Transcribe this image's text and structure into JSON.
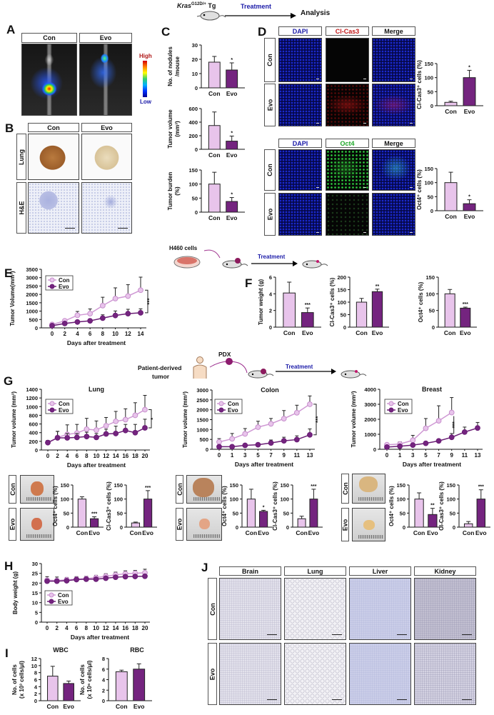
{
  "figure": {
    "panel_letters": [
      "A",
      "B",
      "C",
      "D",
      "E",
      "F",
      "G",
      "H",
      "I",
      "J"
    ],
    "colors": {
      "con_fill": "#e8c4eb",
      "con_line": "#cf98d4",
      "evo_fill": "#74247f",
      "evo_line": "#6a1d75",
      "axis": "#111111",
      "treatment_text": "#1a1aa8",
      "cl_cas3_text": "#c21818",
      "oct4_text": "#1fa82a"
    },
    "schematic_top": {
      "mouse_label": "Kras",
      "mouse_label_sup": "G12D/+",
      "mouse_label_suffix": " Tg",
      "arrow_label": "Treatment",
      "end_label": "Analysis"
    },
    "panel_A": {
      "headers": [
        "Con",
        "Evo"
      ],
      "colorbar_high": "High",
      "colorbar_low": "Low"
    },
    "panel_B": {
      "headers": [
        "Con",
        "Evo"
      ],
      "rows": [
        "Lung",
        "H&E"
      ]
    },
    "panel_D": {
      "block1": {
        "headers": [
          "DAPI",
          "Cl-Cas3",
          "Merge"
        ],
        "rows": [
          "Con",
          "Evo"
        ]
      },
      "block2": {
        "headers": [
          "DAPI",
          "Oct4",
          "Merge"
        ],
        "rows": [
          "Con",
          "Evo"
        ]
      }
    },
    "schematic_h460": {
      "cells_label": "H460 cells",
      "arrow_label": "Treatment"
    },
    "schematic_pdx": {
      "source_label_1": "Patient-derived",
      "source_label_2": "tumor",
      "pdx_label": "PDX",
      "arrow_label": "Treatment"
    },
    "panel_G_photos": {
      "rows": [
        "Con",
        "Evo"
      ]
    },
    "panel_J": {
      "headers": [
        "Brain",
        "Lung",
        "Liver",
        "Kidney"
      ],
      "rows": [
        "Con",
        "Evo"
      ]
    }
  },
  "chart_data": [
    {
      "panel": "C",
      "type": "bar",
      "ylabel": [
        "No. of nodules",
        "/mouse"
      ],
      "ylim": [
        0,
        30
      ],
      "yticks": [
        0,
        10,
        20,
        30
      ],
      "categories": [
        "Con",
        "Evo"
      ],
      "values": [
        18,
        12.5
      ],
      "errors": [
        4,
        5
      ],
      "significance": [
        "",
        "*"
      ]
    },
    {
      "panel": "C",
      "type": "bar",
      "ylabel": [
        "Tumor volume",
        "(mm³)"
      ],
      "ylim": [
        0,
        600
      ],
      "yticks": [
        0,
        200,
        400,
        600
      ],
      "categories": [
        "Con",
        "Evo"
      ],
      "values": [
        350,
        120
      ],
      "errors": [
        200,
        75
      ],
      "significance": [
        "",
        "*"
      ]
    },
    {
      "panel": "C",
      "type": "bar",
      "ylabel": [
        "Tumor burden",
        "(%)"
      ],
      "ylim": [
        0,
        150
      ],
      "yticks": [
        0,
        50,
        100,
        150
      ],
      "categories": [
        "Con",
        "Evo"
      ],
      "values": [
        100,
        38
      ],
      "errors": [
        42,
        14
      ],
      "significance": [
        "",
        "*"
      ]
    },
    {
      "panel": "D",
      "type": "bar",
      "ylabel": [
        "Cl-Cas3⁺ cells (%)"
      ],
      "ylim": [
        0,
        150
      ],
      "yticks": [
        0,
        50,
        100,
        150
      ],
      "categories": [
        "Con",
        "Evo"
      ],
      "values": [
        12,
        100
      ],
      "errors": [
        4,
        26
      ],
      "significance": [
        "",
        "*"
      ]
    },
    {
      "panel": "D",
      "type": "bar",
      "ylabel": [
        "Oct4⁺ cells (%)"
      ],
      "ylim": [
        0,
        150
      ],
      "yticks": [
        0,
        50,
        100,
        150
      ],
      "categories": [
        "Con",
        "Evo"
      ],
      "values": [
        100,
        25
      ],
      "errors": [
        37,
        14
      ],
      "significance": [
        "",
        "*"
      ]
    },
    {
      "panel": "E",
      "type": "line",
      "title": "",
      "ylabel": [
        "Tumor Volume(mm³)"
      ],
      "xlabel": "Days after treatment",
      "x": [
        0,
        2,
        4,
        6,
        8,
        10,
        12,
        14
      ],
      "ylim": [
        0,
        3500
      ],
      "yticks": [
        0,
        500,
        1000,
        1500,
        2000,
        2500,
        3000,
        3500
      ],
      "legend": "top-left",
      "significance": "***",
      "series": [
        {
          "name": "Con",
          "values": [
            200,
            420,
            750,
            850,
            1330,
            1750,
            1900,
            2250
          ],
          "errors": [
            60,
            80,
            230,
            280,
            500,
            640,
            680,
            780
          ]
        },
        {
          "name": "Evo",
          "values": [
            130,
            260,
            350,
            420,
            580,
            740,
            850,
            900
          ],
          "errors": [
            40,
            60,
            80,
            90,
            200,
            270,
            260,
            240
          ]
        }
      ]
    },
    {
      "panel": "F",
      "type": "bar",
      "ylabel": [
        "Tumor weight (g)"
      ],
      "ylim": [
        0,
        6
      ],
      "yticks": [
        0,
        2,
        4,
        6
      ],
      "categories": [
        "Con",
        "Evo"
      ],
      "values": [
        4.1,
        1.75
      ],
      "errors": [
        1.3,
        0.55
      ],
      "significance": [
        "",
        "***"
      ]
    },
    {
      "panel": "F",
      "type": "bar",
      "ylabel": [
        "Cl-Cas3⁺ cells (%)"
      ],
      "ylim": [
        0,
        200
      ],
      "yticks": [
        0,
        50,
        100,
        150,
        200
      ],
      "categories": [
        "Con",
        "Evo"
      ],
      "values": [
        100,
        142
      ],
      "errors": [
        15,
        10
      ],
      "significance": [
        "",
        "**"
      ]
    },
    {
      "panel": "F",
      "type": "bar",
      "ylabel": [
        "Oct4⁺ cells (%)"
      ],
      "ylim": [
        0,
        150
      ],
      "yticks": [
        0,
        50,
        100,
        150
      ],
      "categories": [
        "Con",
        "Evo"
      ],
      "values": [
        100,
        57
      ],
      "errors": [
        13,
        3
      ],
      "significance": [
        "",
        "***"
      ]
    },
    {
      "panel": "G",
      "type": "line",
      "title": "Lung",
      "ylabel": [
        "Tumor volume (mm³)"
      ],
      "xlabel": "Days after treatment",
      "x": [
        0,
        2,
        4,
        6,
        8,
        10,
        12,
        14,
        16,
        18,
        20
      ],
      "ylim": [
        0,
        1400
      ],
      "yticks": [
        0,
        200,
        400,
        600,
        800,
        1000,
        1200,
        1400
      ],
      "legend": "top-left",
      "significance": "*",
      "series": [
        {
          "name": "Con",
          "values": [
            170,
            290,
            360,
            390,
            480,
            460,
            560,
            660,
            700,
            800,
            930
          ],
          "errors": [
            50,
            140,
            220,
            200,
            250,
            210,
            190,
            230,
            250,
            290,
            330
          ]
        },
        {
          "name": "Evo",
          "values": [
            170,
            280,
            280,
            290,
            310,
            290,
            370,
            380,
            450,
            400,
            510
          ],
          "errors": [
            50,
            150,
            100,
            90,
            100,
            90,
            110,
            170,
            140,
            190,
            200
          ]
        }
      ]
    },
    {
      "panel": "G",
      "type": "line",
      "title": "Colon",
      "ylabel": [
        "Tumor volume (mm³)"
      ],
      "xlabel": "Days after treatment",
      "x": [
        0,
        1,
        3,
        5,
        7,
        9,
        11,
        13
      ],
      "ylim": [
        0,
        3000
      ],
      "yticks": [
        0,
        500,
        1000,
        1500,
        2000,
        2500,
        3000
      ],
      "legend": "top-left",
      "significance": "***",
      "series": [
        {
          "name": "Con",
          "values": [
            370,
            530,
            780,
            1120,
            1290,
            1550,
            1850,
            2280
          ],
          "errors": [
            170,
            270,
            270,
            300,
            270,
            410,
            380,
            420
          ]
        },
        {
          "name": "Evo",
          "values": [
            130,
            130,
            200,
            230,
            320,
            430,
            490,
            730
          ],
          "errors": [
            40,
            40,
            60,
            70,
            150,
            180,
            190,
            300
          ]
        }
      ]
    },
    {
      "panel": "G",
      "type": "line",
      "title": "Breast",
      "ylabel": [
        "Tumor volume (mm³)"
      ],
      "xlabel": "Days after treatment",
      "x": [
        0,
        1,
        3,
        5,
        7,
        9,
        11,
        13
      ],
      "ylim": [
        0,
        4000
      ],
      "yticks": [
        0,
        1000,
        2000,
        3000,
        4000
      ],
      "legend": "top-left",
      "significance": "***",
      "series": [
        {
          "name": "Con",
          "values": [
            300,
            350,
            600,
            1400,
            1900,
            2450,
            null,
            null
          ],
          "errors": [
            100,
            150,
            330,
            650,
            1000,
            1000,
            null,
            null
          ]
        },
        {
          "name": "Evo",
          "values": [
            150,
            200,
            280,
            400,
            560,
            800,
            1150,
            1420
          ],
          "errors": [
            50,
            60,
            80,
            90,
            100,
            250,
            330,
            370
          ]
        }
      ]
    },
    {
      "panel": "G",
      "type": "bar",
      "ylabel": [
        "Oct4⁺ cells (%)"
      ],
      "ylim": [
        0,
        150
      ],
      "yticks": [
        0,
        50,
        100,
        150
      ],
      "categories": [
        "Con",
        "Evo"
      ],
      "values": [
        100,
        30
      ],
      "errors": [
        8,
        7
      ],
      "significance": [
        "",
        "***"
      ]
    },
    {
      "panel": "G",
      "type": "bar",
      "ylabel": [
        "Cl-Cas3⁺ cells (%)"
      ],
      "ylim": [
        0,
        150
      ],
      "yticks": [
        0,
        50,
        100,
        150
      ],
      "categories": [
        "Con",
        "Evo"
      ],
      "values": [
        15,
        100
      ],
      "errors": [
        3,
        30
      ],
      "significance": [
        "",
        "***"
      ]
    },
    {
      "panel": "G",
      "type": "bar",
      "ylabel": [
        "Oct4⁺ cells (%)"
      ],
      "ylim": [
        0,
        150
      ],
      "yticks": [
        0,
        50,
        100,
        150
      ],
      "categories": [
        "Con",
        "Evo"
      ],
      "values": [
        100,
        56
      ],
      "errors": [
        35,
        4
      ],
      "significance": [
        "",
        "*"
      ]
    },
    {
      "panel": "G",
      "type": "bar",
      "ylabel": [
        "Cl-Cas3⁺ cells (%)"
      ],
      "ylim": [
        0,
        150
      ],
      "yticks": [
        0,
        50,
        100,
        150
      ],
      "categories": [
        "Con",
        "Evo"
      ],
      "values": [
        30,
        100
      ],
      "errors": [
        9,
        35
      ],
      "significance": [
        "",
        "***"
      ]
    },
    {
      "panel": "G",
      "type": "bar",
      "ylabel": [
        "Oct4⁺ cells (%)"
      ],
      "ylim": [
        0,
        150
      ],
      "yticks": [
        0,
        50,
        100,
        150
      ],
      "categories": [
        "Con",
        "Evo"
      ],
      "values": [
        100,
        45
      ],
      "errors": [
        22,
        22
      ],
      "significance": [
        "",
        "**"
      ]
    },
    {
      "panel": "G",
      "type": "bar",
      "ylabel": [
        "Cl-Cas3⁺ cells (%)"
      ],
      "ylim": [
        0,
        150
      ],
      "yticks": [
        0,
        50,
        100,
        150
      ],
      "categories": [
        "Con",
        "Evo"
      ],
      "values": [
        12,
        100
      ],
      "errors": [
        8,
        33
      ],
      "significance": [
        "",
        "***"
      ]
    },
    {
      "panel": "H",
      "type": "line",
      "title": "",
      "ylabel": [
        "Body weight (g)"
      ],
      "xlabel": "Days after treatment",
      "x": [
        0,
        2,
        4,
        6,
        8,
        10,
        12,
        14,
        16,
        18,
        20
      ],
      "ylim": [
        0,
        30
      ],
      "yticks": [
        0,
        5,
        10,
        15,
        20,
        25,
        30
      ],
      "legend": "middle-left",
      "significance": "",
      "series": [
        {
          "name": "Con",
          "values": [
            21.5,
            21.3,
            21.7,
            22,
            22.3,
            22.8,
            23.5,
            24.2,
            24.8,
            25,
            25.3
          ],
          "errors": [
            1.8,
            1.8,
            1.2,
            1.3,
            1.2,
            1.2,
            1.3,
            1.4,
            1.5,
            1.5,
            1.8
          ]
        },
        {
          "name": "Evo",
          "values": [
            21,
            21,
            21.2,
            21.8,
            22,
            22,
            22.5,
            23,
            23.3,
            23.4,
            23.5
          ],
          "errors": [
            0.6,
            0.6,
            0.6,
            0.6,
            0.6,
            0.6,
            0.6,
            0.6,
            0.6,
            0.6,
            0.6
          ]
        }
      ]
    },
    {
      "panel": "I",
      "type": "bar",
      "title": "WBC",
      "ylabel": [
        "No. of cells",
        "(x 10³ cells/μl)"
      ],
      "ylim": [
        0,
        12
      ],
      "yticks": [
        0,
        2,
        4,
        6,
        8,
        10,
        12
      ],
      "categories": [
        "Con",
        "Evo"
      ],
      "values": [
        7,
        4.9
      ],
      "errors": [
        2.8,
        0.7
      ],
      "significance": [
        "",
        ""
      ]
    },
    {
      "panel": "I",
      "type": "bar",
      "title": "RBC",
      "ylabel": [
        "No. of cells",
        "(x 10⁶ cells/μl)"
      ],
      "ylim": [
        0,
        8
      ],
      "yticks": [
        0,
        2,
        4,
        6,
        8
      ],
      "categories": [
        "Con",
        "Evo"
      ],
      "values": [
        5.5,
        6
      ],
      "errors": [
        0.3,
        1
      ],
      "significance": [
        "",
        ""
      ]
    }
  ]
}
